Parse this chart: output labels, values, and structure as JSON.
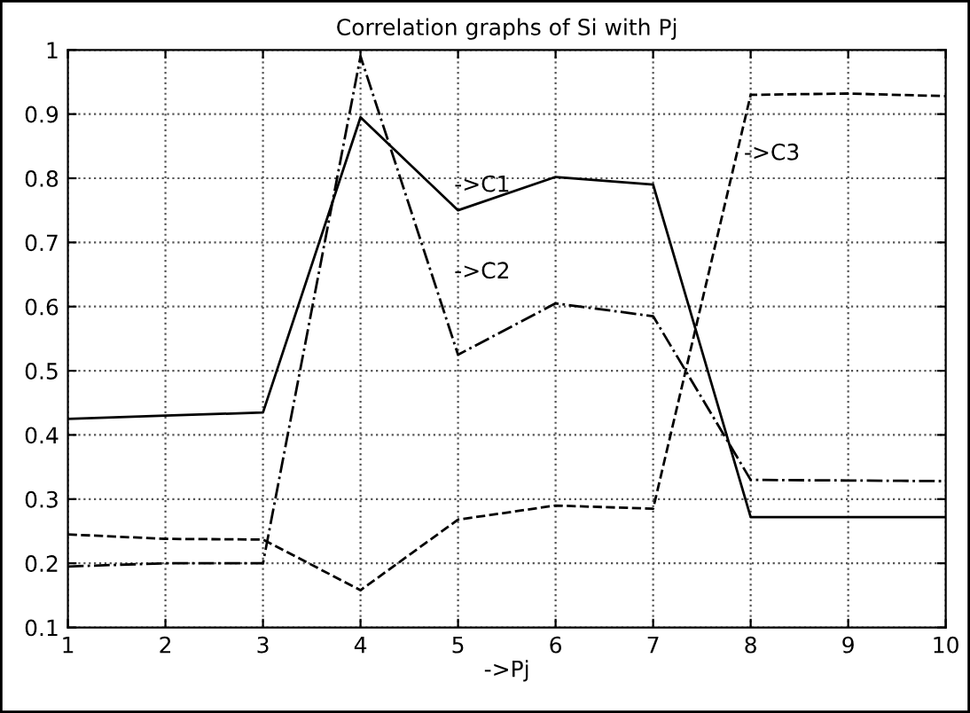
{
  "chart_data": {
    "type": "line",
    "title": "Correlation graphs of Si with Pj",
    "xlabel": "->Pj",
    "x": [
      1,
      2,
      3,
      4,
      5,
      6,
      7,
      8,
      9,
      10
    ],
    "series": [
      {
        "color": "#000000",
        "line_style": "solid",
        "values": [
          0.425,
          0.43,
          0.435,
          0.895,
          0.75,
          0.802,
          0.79,
          0.272,
          0.272,
          0.272
        ]
      },
      {
        "color": "#000000",
        "line_style": "dashdot",
        "values": [
          0.195,
          0.2,
          0.2,
          0.99,
          0.525,
          0.605,
          0.585,
          0.33,
          0.329,
          0.328
        ]
      },
      {
        "color": "#000000",
        "line_style": "dashed",
        "values": [
          0.245,
          0.238,
          0.237,
          0.158,
          0.268,
          0.29,
          0.285,
          0.93,
          0.932,
          0.928
        ]
      }
    ],
    "annotations": [
      "->C1",
      "->C2",
      "->C3"
    ],
    "xlim": [
      1,
      10
    ],
    "ylim": [
      0.1,
      1
    ],
    "xticks": [
      1,
      2,
      3,
      4,
      5,
      6,
      7,
      8,
      9,
      10
    ],
    "yticks": [
      0.1,
      0.2,
      0.3,
      0.4,
      0.5,
      0.6,
      0.7,
      0.8,
      0.9,
      1
    ],
    "grid": true,
    "marker": "none",
    "legend": false
  }
}
